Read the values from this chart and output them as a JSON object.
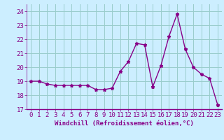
{
  "x": [
    0,
    1,
    2,
    3,
    4,
    5,
    6,
    7,
    8,
    9,
    10,
    11,
    12,
    13,
    14,
    15,
    16,
    17,
    18,
    19,
    20,
    21,
    22,
    23
  ],
  "y": [
    19.0,
    19.0,
    18.8,
    18.7,
    18.7,
    18.7,
    18.7,
    18.7,
    18.4,
    18.4,
    18.5,
    19.7,
    20.4,
    21.7,
    21.6,
    18.6,
    20.1,
    22.2,
    23.8,
    21.3,
    20.0,
    19.5,
    19.2,
    17.3
  ],
  "line_color": "#880088",
  "marker": "*",
  "marker_size": 3.5,
  "bg_color": "#cceeff",
  "grid_color": "#99cccc",
  "xlabel": "Windchill (Refroidissement éolien,°C)",
  "ylim": [
    17,
    24.5
  ],
  "xlim": [
    -0.5,
    23.5
  ],
  "yticks": [
    17,
    18,
    19,
    20,
    21,
    22,
    23,
    24
  ],
  "xticks": [
    0,
    1,
    2,
    3,
    4,
    5,
    6,
    7,
    8,
    9,
    10,
    11,
    12,
    13,
    14,
    15,
    16,
    17,
    18,
    19,
    20,
    21,
    22,
    23
  ],
  "xlabel_fontsize": 6.5,
  "tick_fontsize": 6.5,
  "line_width": 1.0
}
